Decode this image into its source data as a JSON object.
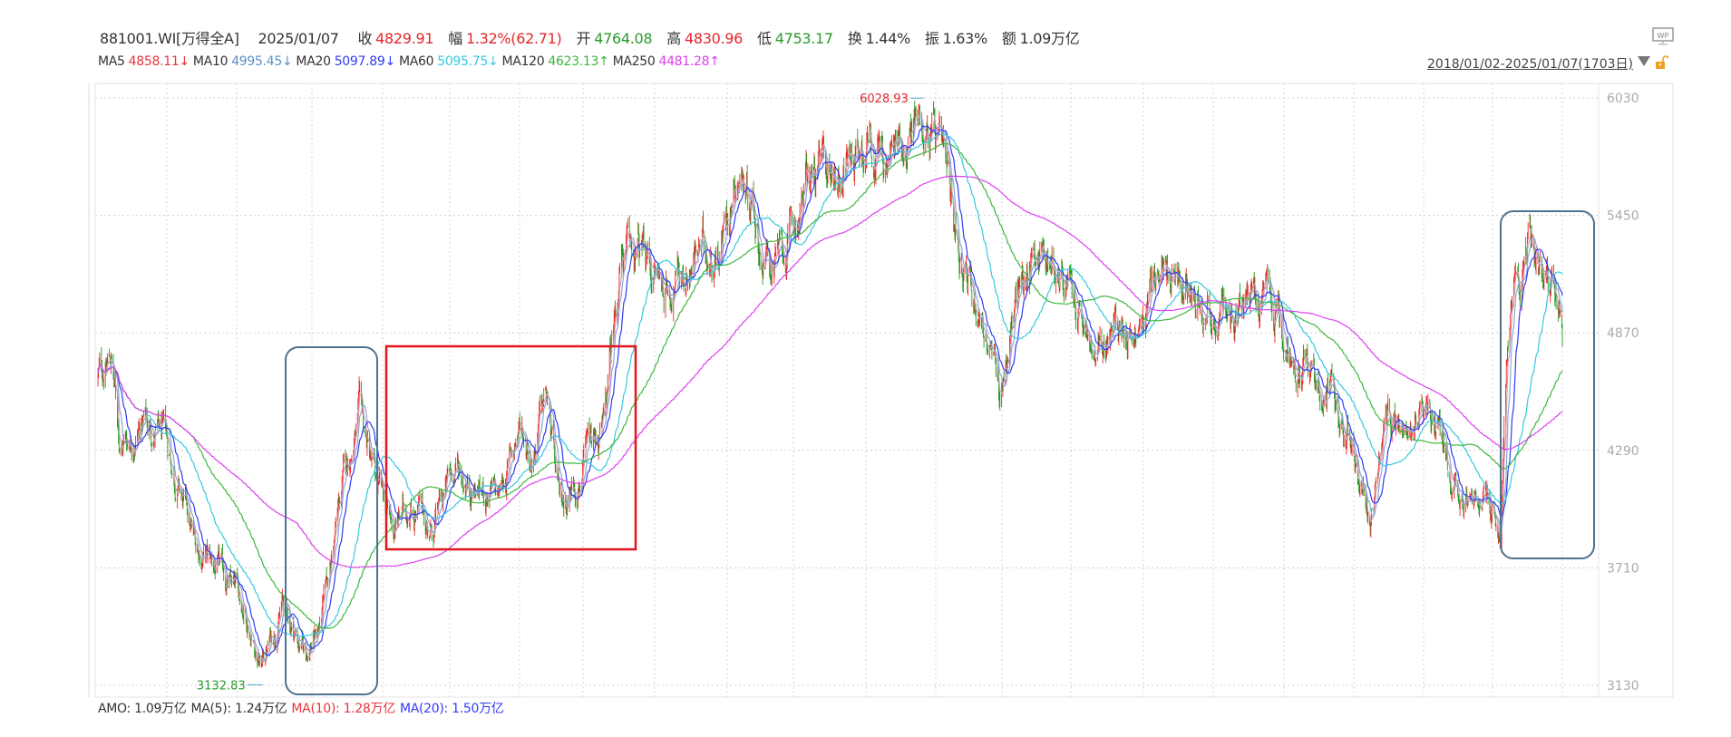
{
  "header": {
    "code": "881001.WI[万得全A]",
    "date": "2025/01/07",
    "fields": [
      {
        "label": "收",
        "value": "4829.91",
        "color": "#e3262b"
      },
      {
        "label": "幅",
        "value": "1.32%(62.71)",
        "color": "#e3262b"
      },
      {
        "label": "开",
        "value": "4764.08",
        "color": "#2a9a2a"
      },
      {
        "label": "高",
        "value": "4830.96",
        "color": "#e3262b"
      },
      {
        "label": "低",
        "value": "4753.17",
        "color": "#2a9a2a"
      },
      {
        "label": "换",
        "value": "1.44%",
        "color": "#333333"
      },
      {
        "label": "振",
        "value": "1.63%",
        "color": "#333333"
      },
      {
        "label": "额",
        "value": "1.09万亿",
        "color": "#333333"
      }
    ]
  },
  "ma_legend": [
    {
      "label": "MA5",
      "value": "4858.11↓",
      "color": "#e8343a"
    },
    {
      "label": "MA10",
      "value": "4995.45↓",
      "color": "#5b8fc7"
    },
    {
      "label": "MA20",
      "value": "5097.89↓",
      "color": "#2f3cf5"
    },
    {
      "label": "MA60",
      "value": "5095.75↓",
      "color": "#33c9e0"
    },
    {
      "label": "MA120",
      "value": "4623.13↑",
      "color": "#3cb83c"
    },
    {
      "label": "MA250",
      "value": "4481.28↑",
      "color": "#dd3ff0"
    }
  ],
  "date_range": "2018/01/02-2025/01/07(1703日)",
  "icons": {
    "wp": "wp-monitor-icon",
    "dropdown": "triangle-down-icon",
    "lock": "unlock-icon"
  },
  "amount_bar": [
    {
      "text": "AMO: 1.09万亿",
      "color": "#333333"
    },
    {
      "text": "MA(5): 1.24万亿",
      "color": "#333333"
    },
    {
      "text": "MA(10): 1.28万亿",
      "color": "#e8343a"
    },
    {
      "text": "MA(20): 1.50万亿",
      "color": "#2f3cf5"
    }
  ],
  "chart_data": {
    "type": "candlestick",
    "ylim": [
      3130,
      6030
    ],
    "yticks": [
      "6030",
      "5450",
      "4870",
      "4290",
      "3710",
      "3130"
    ],
    "grid": true,
    "up_color": "#f0262a",
    "down_color": "#1f9b1f",
    "close_keypoints": [
      {
        "date": "2018-01-02",
        "close": 4651
      },
      {
        "date": "2018-01-25",
        "close": 4750
      },
      {
        "date": "2018-02-10",
        "close": 4322
      },
      {
        "date": "2018-03-24",
        "close": 4430
      },
      {
        "date": "2018-05-02",
        "close": 4320
      },
      {
        "date": "2018-06-19",
        "close": 3830
      },
      {
        "date": "2018-08-07",
        "close": 3665
      },
      {
        "date": "2018-09-15",
        "close": 3530
      },
      {
        "date": "2018-10-14",
        "close": 3228
      },
      {
        "date": "2018-11-21",
        "close": 3530
      },
      {
        "date": "2018-12-30",
        "close": 3283
      },
      {
        "date": "2019-01-28",
        "close": 3447
      },
      {
        "date": "2019-03-08",
        "close": 4159
      },
      {
        "date": "2019-04-06",
        "close": 4460
      },
      {
        "date": "2019-05-05",
        "close": 4104
      },
      {
        "date": "2019-06-03",
        "close": 3885
      },
      {
        "date": "2019-07-02",
        "close": 4049
      },
      {
        "date": "2019-08-10",
        "close": 3885
      },
      {
        "date": "2019-09-17",
        "close": 4213
      },
      {
        "date": "2019-10-26",
        "close": 4104
      },
      {
        "date": "2019-12-04",
        "close": 4049
      },
      {
        "date": "2020-01-12",
        "close": 4432
      },
      {
        "date": "2020-01-31",
        "close": 4268
      },
      {
        "date": "2020-02-25",
        "close": 4569
      },
      {
        "date": "2020-03-19",
        "close": 3995
      },
      {
        "date": "2020-04-27",
        "close": 4213
      },
      {
        "date": "2020-06-05",
        "close": 4378
      },
      {
        "date": "2020-07-04",
        "close": 5253
      },
      {
        "date": "2020-08-12",
        "close": 5253
      },
      {
        "date": "2020-09-19",
        "close": 5089
      },
      {
        "date": "2020-11-16",
        "close": 5253
      },
      {
        "date": "2020-12-25",
        "close": 5308
      },
      {
        "date": "2021-01-23",
        "close": 5690
      },
      {
        "date": "2021-02-21",
        "close": 5554
      },
      {
        "date": "2021-03-12",
        "close": 5198
      },
      {
        "date": "2021-04-20",
        "close": 5253
      },
      {
        "date": "2021-05-29",
        "close": 5636
      },
      {
        "date": "2021-07-26",
        "close": 5690
      },
      {
        "date": "2021-09-12",
        "close": 5882
      },
      {
        "date": "2021-10-11",
        "close": 5690
      },
      {
        "date": "2021-12-09",
        "close": 5964
      },
      {
        "date": "2022-01-07",
        "close": 5800
      },
      {
        "date": "2022-02-01",
        "close": 5472
      },
      {
        "date": "2022-03-06",
        "close": 5144
      },
      {
        "date": "2022-04-04",
        "close": 4870
      },
      {
        "date": "2022-04-29",
        "close": 4542
      },
      {
        "date": "2022-05-22",
        "close": 4980
      },
      {
        "date": "2022-06-30",
        "close": 5308
      },
      {
        "date": "2022-08-08",
        "close": 5198
      },
      {
        "date": "2022-09-15",
        "close": 4925
      },
      {
        "date": "2022-10-14",
        "close": 4706
      },
      {
        "date": "2022-11-22",
        "close": 4925
      },
      {
        "date": "2022-12-31",
        "close": 4870
      },
      {
        "date": "2023-01-29",
        "close": 5198
      },
      {
        "date": "2023-03-08",
        "close": 5089
      },
      {
        "date": "2023-04-07",
        "close": 5144
      },
      {
        "date": "2023-05-15",
        "close": 4925
      },
      {
        "date": "2023-06-23",
        "close": 4980
      },
      {
        "date": "2023-08-01",
        "close": 5034
      },
      {
        "date": "2023-09-08",
        "close": 4815
      },
      {
        "date": "2023-10-17",
        "close": 4706
      },
      {
        "date": "2023-11-25",
        "close": 4596
      },
      {
        "date": "2024-01-03",
        "close": 4378
      },
      {
        "date": "2024-02-06",
        "close": 3885
      },
      {
        "date": "2024-03-01",
        "close": 4378
      },
      {
        "date": "2024-03-30",
        "close": 4487
      },
      {
        "date": "2024-05-07",
        "close": 4542
      },
      {
        "date": "2024-06-05",
        "close": 4378
      },
      {
        "date": "2024-07-14",
        "close": 4104
      },
      {
        "date": "2024-08-22",
        "close": 3995
      },
      {
        "date": "2024-09-20",
        "close": 3885
      },
      {
        "date": "2024-10-03",
        "close": 4870
      },
      {
        "date": "2024-10-23",
        "close": 5034
      },
      {
        "date": "2024-11-07",
        "close": 5362
      },
      {
        "date": "2024-12-06",
        "close": 5198
      },
      {
        "date": "2025-01-07",
        "close": 4829.91
      }
    ],
    "moving_averages": [
      {
        "name": "MA5",
        "period": 5,
        "color": "#c9a0a8"
      },
      {
        "name": "MA10",
        "period": 10,
        "color": "#8fa6d8"
      },
      {
        "name": "MA20",
        "period": 20,
        "color": "#2f3cf5"
      },
      {
        "name": "MA60",
        "period": 60,
        "color": "#33c9e0"
      },
      {
        "name": "MA120",
        "period": 120,
        "color": "#3cb83c"
      },
      {
        "name": "MA250",
        "period": 250,
        "color": "#dd3ff0"
      }
    ],
    "annotations": {
      "max": {
        "value": "6028.93",
        "date": "2021-12-09",
        "color": "#e3262b"
      },
      "min": {
        "value": "3132.83",
        "date": "2018-10-14",
        "color": "#2a9a2a"
      }
    }
  }
}
